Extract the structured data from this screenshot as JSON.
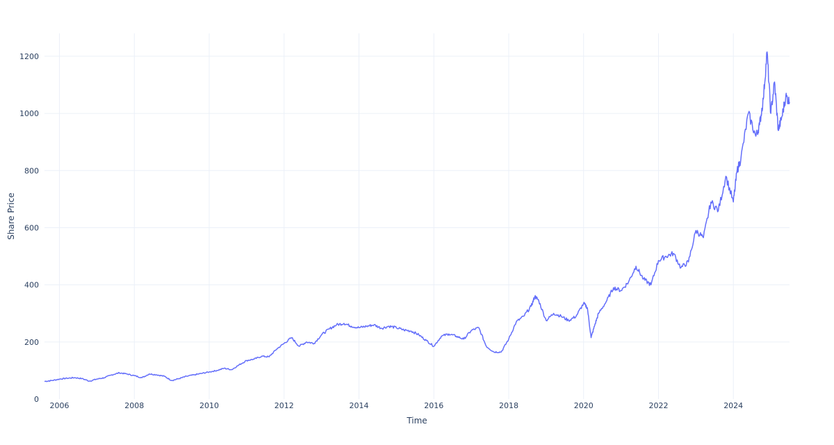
{
  "chart_data": {
    "type": "line",
    "title": "",
    "xlabel": "Time",
    "ylabel": "Share Price",
    "xlim": [
      2005.6,
      2025.5
    ],
    "ylim": [
      0,
      1280
    ],
    "x_ticks": [
      2006,
      2008,
      2010,
      2012,
      2014,
      2016,
      2018,
      2020,
      2022,
      2024
    ],
    "x_tick_labels": [
      "2006",
      "2008",
      "2010",
      "2012",
      "2014",
      "2016",
      "2018",
      "2020",
      "2022",
      "2024"
    ],
    "y_ticks": [
      0,
      200,
      400,
      600,
      800,
      1000,
      1200
    ],
    "y_tick_labels": [
      "0",
      "200",
      "400",
      "600",
      "800",
      "1000",
      "1200"
    ],
    "grid": true,
    "legend": "none",
    "series": [
      {
        "color": "#636efa",
        "x": [
          2005.6,
          2005.8,
          2006.0,
          2006.2,
          2006.4,
          2006.6,
          2006.8,
          2007.0,
          2007.2,
          2007.4,
          2007.6,
          2007.8,
          2008.0,
          2008.2,
          2008.4,
          2008.6,
          2008.8,
          2009.0,
          2009.2,
          2009.4,
          2009.6,
          2009.8,
          2010.0,
          2010.2,
          2010.4,
          2010.6,
          2010.8,
          2011.0,
          2011.2,
          2011.4,
          2011.6,
          2011.8,
          2012.0,
          2012.2,
          2012.4,
          2012.6,
          2012.8,
          2013.0,
          2013.2,
          2013.4,
          2013.6,
          2013.8,
          2014.0,
          2014.2,
          2014.4,
          2014.6,
          2014.8,
          2015.0,
          2015.2,
          2015.4,
          2015.6,
          2015.8,
          2016.0,
          2016.2,
          2016.4,
          2016.6,
          2016.8,
          2017.0,
          2017.2,
          2017.4,
          2017.6,
          2017.8,
          2018.0,
          2018.2,
          2018.4,
          2018.6,
          2018.7,
          2018.8,
          2019.0,
          2019.2,
          2019.4,
          2019.6,
          2019.8,
          2020.0,
          2020.1,
          2020.2,
          2020.3,
          2020.4,
          2020.6,
          2020.8,
          2021.0,
          2021.2,
          2021.4,
          2021.6,
          2021.8,
          2022.0,
          2022.2,
          2022.4,
          2022.6,
          2022.8,
          2023.0,
          2023.2,
          2023.4,
          2023.6,
          2023.8,
          2024.0,
          2024.1,
          2024.2,
          2024.4,
          2024.6,
          2024.7,
          2024.8,
          2024.9,
          2025.0,
          2025.1,
          2025.2,
          2025.3,
          2025.4,
          2025.5
        ],
        "values": [
          62,
          65,
          70,
          73,
          75,
          72,
          63,
          70,
          75,
          85,
          92,
          88,
          82,
          75,
          88,
          85,
          80,
          65,
          72,
          80,
          85,
          90,
          95,
          100,
          108,
          103,
          120,
          135,
          140,
          150,
          148,
          175,
          195,
          215,
          185,
          200,
          195,
          225,
          245,
          260,
          265,
          255,
          250,
          255,
          260,
          248,
          255,
          250,
          242,
          238,
          225,
          205,
          185,
          220,
          228,
          220,
          210,
          240,
          250,
          185,
          165,
          165,
          210,
          270,
          290,
          325,
          360,
          345,
          275,
          300,
          290,
          275,
          290,
          335,
          320,
          215,
          260,
          300,
          340,
          390,
          380,
          410,
          465,
          420,
          400,
          485,
          500,
          510,
          460,
          480,
          590,
          565,
          690,
          660,
          780,
          690,
          800,
          840,
          1000,
          920,
          960,
          1050,
          1215,
          1000,
          1110,
          940,
          990,
          1060,
          1040
        ]
      }
    ]
  }
}
